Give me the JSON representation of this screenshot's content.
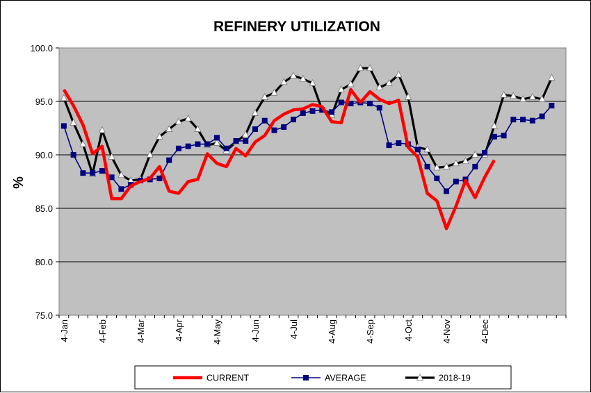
{
  "chart_data": {
    "type": "line",
    "title": "REFINERY UTILIZATION",
    "ylabel": "%",
    "xlabel": "",
    "ylim": [
      75.0,
      100.0
    ],
    "yticks": [
      "75.0",
      "80.0",
      "85.0",
      "90.0",
      "95.0",
      "100.0"
    ],
    "xtick_labels": [
      "4-Jan",
      "4-Feb",
      "4-Mar",
      "4-Apr",
      "4-May",
      "4-Jun",
      "4-Jul",
      "4-Aug",
      "4-Sep",
      "4-Oct",
      "4-Nov",
      "4-Dec"
    ],
    "weeks": 53,
    "grid": "horizontal",
    "legend_position": "bottom",
    "series": [
      {
        "name": "CURRENT",
        "color": "#ff0000",
        "marker": "none",
        "values": [
          96.1,
          94.6,
          92.8,
          90.1,
          90.8,
          85.9,
          85.9,
          87.1,
          87.5,
          87.8,
          88.9,
          86.6,
          86.4,
          87.5,
          87.7,
          90.1,
          89.2,
          88.9,
          90.6,
          89.9,
          91.2,
          91.8,
          93.2,
          93.8,
          94.2,
          94.3,
          94.7,
          94.5,
          93.1,
          93.0,
          96.1,
          94.9,
          95.9,
          95.2,
          94.8,
          95.1,
          90.7,
          89.8,
          86.4,
          85.7,
          83.1,
          85.2,
          87.6,
          86.0,
          87.9,
          89.5
        ]
      },
      {
        "name": "AVERAGE",
        "color": "#000080",
        "marker": "square",
        "values": [
          92.7,
          90.0,
          88.3,
          88.3,
          88.5,
          87.9,
          86.8,
          87.2,
          87.6,
          87.7,
          87.8,
          89.5,
          90.6,
          90.8,
          91.0,
          91.0,
          91.6,
          90.6,
          91.3,
          91.3,
          92.4,
          93.2,
          92.3,
          92.6,
          93.3,
          93.9,
          94.1,
          94.2,
          94.0,
          94.9,
          94.8,
          94.9,
          94.8,
          94.4,
          90.9,
          91.1,
          91.0,
          90.5,
          88.9,
          87.8,
          86.6,
          87.5,
          87.7,
          88.9,
          90.2,
          91.7,
          91.8,
          93.3,
          93.3,
          93.2,
          93.6,
          94.6
        ]
      },
      {
        "name": "2018-19",
        "color": "#000000",
        "marker": "triangle",
        "values": [
          95.3,
          93.0,
          91.0,
          88.2,
          92.3,
          89.8,
          88.1,
          87.6,
          87.7,
          90.0,
          91.7,
          92.4,
          93.1,
          93.4,
          92.4,
          90.9,
          91.1,
          90.4,
          91.2,
          91.9,
          93.9,
          95.4,
          95.8,
          96.8,
          97.4,
          97.1,
          96.7,
          94.2,
          93.7,
          96.1,
          96.6,
          98.1,
          98.1,
          96.3,
          96.7,
          97.5,
          95.4,
          90.7,
          90.5,
          88.8,
          88.9,
          89.2,
          89.4,
          90.0,
          90.0,
          92.7,
          95.6,
          95.5,
          95.2,
          95.4,
          95.2,
          97.2
        ]
      }
    ]
  }
}
